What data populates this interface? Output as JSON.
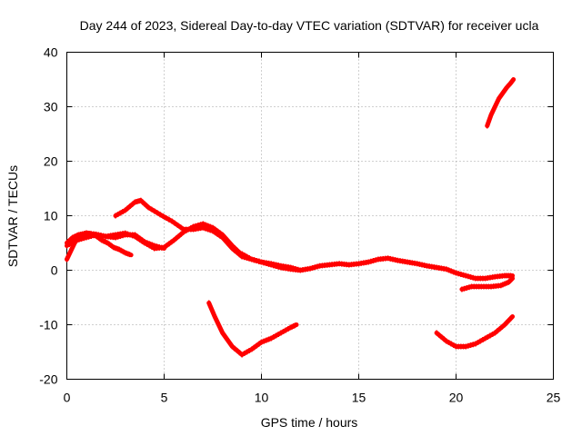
{
  "chart_data": {
    "type": "line",
    "title": "Day 244 of 2023, Sidereal Day-to-day VTEC variation (SDTVAR) for receiver ucla",
    "xlabel": "GPS time / hours",
    "ylabel": "SDTVAR / TECUs",
    "xlim": [
      0,
      25
    ],
    "ylim": [
      -20,
      40
    ],
    "xticks": [
      0,
      5,
      10,
      15,
      20,
      25
    ],
    "yticks": [
      -20,
      -10,
      0,
      10,
      20,
      30,
      40
    ],
    "xtick_labels": [
      "0",
      "5",
      "10",
      "15",
      "20",
      "25"
    ],
    "ytick_labels": [
      "-20",
      "-10",
      "0",
      "10",
      "20",
      "30",
      "40"
    ],
    "grid": true,
    "legend": "none",
    "series_color": "#ff0000",
    "series": [
      {
        "name": "arc-a",
        "x": [
          0.0,
          0.2,
          0.4,
          0.6,
          0.8,
          1.0,
          1.2,
          1.5,
          1.8,
          2.1,
          2.4,
          2.7,
          3.0,
          3.3
        ],
        "y": [
          2.0,
          3.5,
          5.0,
          6.0,
          6.5,
          6.8,
          6.7,
          6.3,
          5.5,
          5.0,
          4.2,
          3.8,
          3.2,
          2.8
        ]
      },
      {
        "name": "arc-b",
        "x": [
          0.0,
          0.3,
          0.6,
          1.0,
          1.5,
          2.0,
          2.5,
          3.0,
          3.5,
          4.0,
          4.5,
          5.0,
          5.5,
          6.0,
          6.5,
          7.0,
          7.5,
          8.0,
          8.5,
          9.0,
          9.5,
          10.0,
          10.5,
          11.0,
          11.5,
          12.0,
          12.5,
          13.0,
          13.5,
          14.0,
          14.5,
          15.0,
          15.5,
          16.0,
          16.5,
          17.0,
          17.5,
          18.0,
          18.5,
          19.0,
          19.5,
          20.0,
          20.5,
          21.0,
          21.5,
          22.0,
          22.5,
          22.9
        ],
        "y": [
          5.0,
          6.0,
          6.5,
          6.8,
          6.6,
          6.2,
          6.5,
          6.8,
          6.2,
          5.0,
          4.0,
          4.2,
          5.5,
          7.0,
          8.0,
          8.5,
          7.8,
          6.5,
          4.5,
          2.8,
          2.0,
          1.5,
          1.0,
          0.5,
          0.2,
          0.0,
          0.3,
          0.8,
          1.0,
          1.2,
          1.0,
          1.2,
          1.5,
          2.0,
          2.2,
          1.8,
          1.5,
          1.2,
          0.8,
          0.5,
          0.2,
          -0.5,
          -1.0,
          -1.5,
          -1.5,
          -1.2,
          -1.0,
          -1.0
        ]
      },
      {
        "name": "arc-c",
        "x": [
          0.0,
          0.5,
          1.0,
          1.5,
          2.0,
          2.5,
          3.0,
          3.5,
          4.0,
          4.5,
          5.0
        ],
        "y": [
          4.5,
          5.5,
          6.0,
          6.5,
          6.2,
          6.0,
          6.5,
          6.5,
          5.2,
          4.5,
          4.0
        ]
      },
      {
        "name": "arc-d",
        "x": [
          2.5,
          3.0,
          3.5,
          3.8,
          4.2,
          4.8,
          5.4,
          6.0,
          6.5,
          7.0,
          7.5,
          8.0,
          8.5,
          9.0,
          9.5,
          10.0,
          10.5,
          11.0,
          11.5
        ],
        "y": [
          10.0,
          11.0,
          12.5,
          12.8,
          11.5,
          10.2,
          9.0,
          7.5,
          7.5,
          7.8,
          7.2,
          6.0,
          4.0,
          2.5,
          2.0,
          1.5,
          1.0,
          0.5,
          0.5
        ]
      },
      {
        "name": "arc-e",
        "x": [
          9.0,
          9.5,
          10.0,
          10.5,
          11.0,
          11.5,
          12.0
        ],
        "y": [
          3.0,
          2.0,
          1.5,
          1.2,
          0.8,
          0.5,
          0.0
        ]
      },
      {
        "name": "arc-f",
        "x": [
          7.3,
          7.6,
          8.0,
          8.5,
          9.0,
          9.5,
          10.0,
          10.5,
          11.0,
          11.5,
          11.8
        ],
        "y": [
          -6.0,
          -8.5,
          -11.5,
          -14.0,
          -15.5,
          -14.5,
          -13.2,
          -12.5,
          -11.5,
          -10.5,
          -10.0
        ]
      },
      {
        "name": "arc-g",
        "x": [
          19.0,
          19.5,
          20.0,
          20.5,
          21.0,
          21.5,
          22.0,
          22.5,
          22.9
        ],
        "y": [
          -11.5,
          -13.0,
          -14.0,
          -14.0,
          -13.5,
          -12.5,
          -11.5,
          -10.0,
          -8.5
        ]
      },
      {
        "name": "arc-h",
        "x": [
          20.3,
          20.8,
          21.3,
          21.8,
          22.3,
          22.7,
          22.9
        ],
        "y": [
          -3.5,
          -3.0,
          -3.0,
          -3.0,
          -2.8,
          -2.2,
          -1.5
        ]
      },
      {
        "name": "arc-i",
        "x": [
          21.6,
          21.8,
          22.0,
          22.2,
          22.4,
          22.6,
          22.8,
          22.95
        ],
        "y": [
          26.5,
          28.5,
          30.0,
          31.5,
          32.5,
          33.5,
          34.3,
          35.0
        ]
      }
    ]
  }
}
